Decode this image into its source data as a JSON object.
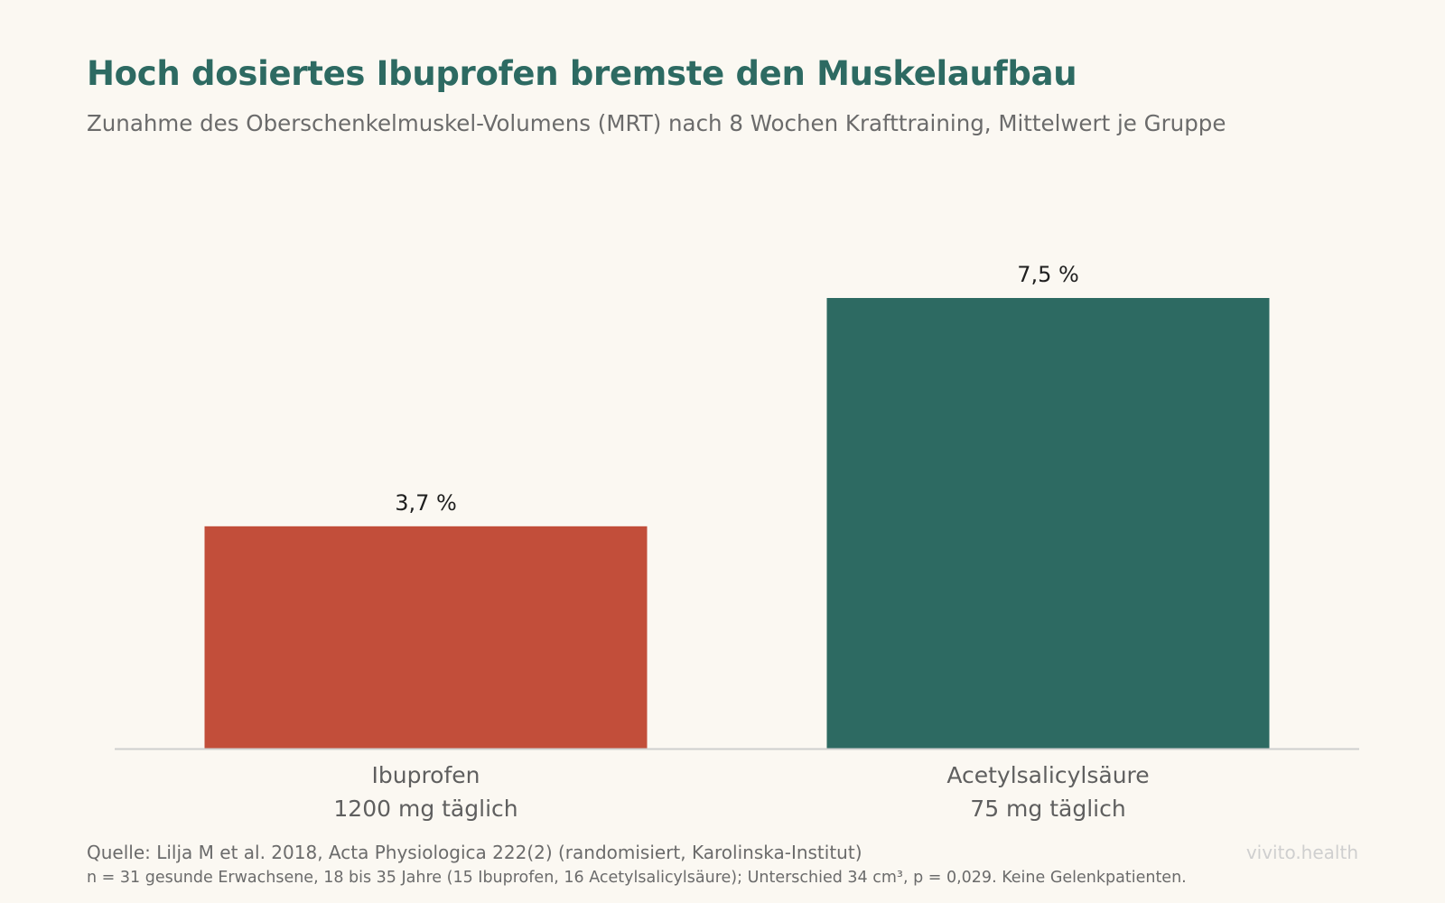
{
  "header": {
    "title": "Hoch dosiertes Ibuprofen bremste den Muskelaufbau",
    "subtitle": "Zunahme des Oberschenkelmuskel-Volumens (MRT) nach 8 Wochen Krafttraining, Mittelwert je Gruppe"
  },
  "chart_data": {
    "type": "bar",
    "title": "Hoch dosiertes Ibuprofen bremste den Muskelaufbau",
    "subtitle": "Zunahme des Oberschenkelmuskel-Volumens (MRT) nach 8 Wochen Krafttraining, Mittelwert je Gruppe",
    "categories": [
      [
        "Ibuprofen",
        "1200 mg täglich"
      ],
      [
        "Acetylsalicylsäure",
        "75 mg täglich"
      ]
    ],
    "values": [
      3.7,
      7.5
    ],
    "value_labels": [
      "3,7 %",
      "7,5 %"
    ],
    "colors": [
      "#c24e3a",
      "#2d6a62"
    ],
    "xlabel": "",
    "ylabel": "",
    "ylim": [
      0,
      7.5
    ],
    "grid": false,
    "legend": "none"
  },
  "footer": {
    "source": "Quelle: Lilja M et al. 2018, Acta Physiologica 222(2) (randomisiert, Karolinska-Institut)",
    "note": "n = 31 gesunde Erwachsene, 18 bis 35 Jahre (15 Ibuprofen, 16 Acetylsalicylsäure); Unterschied 34 cm³, p = 0,029. Keine Gelenkpatienten.",
    "brand": "vivito.health"
  }
}
